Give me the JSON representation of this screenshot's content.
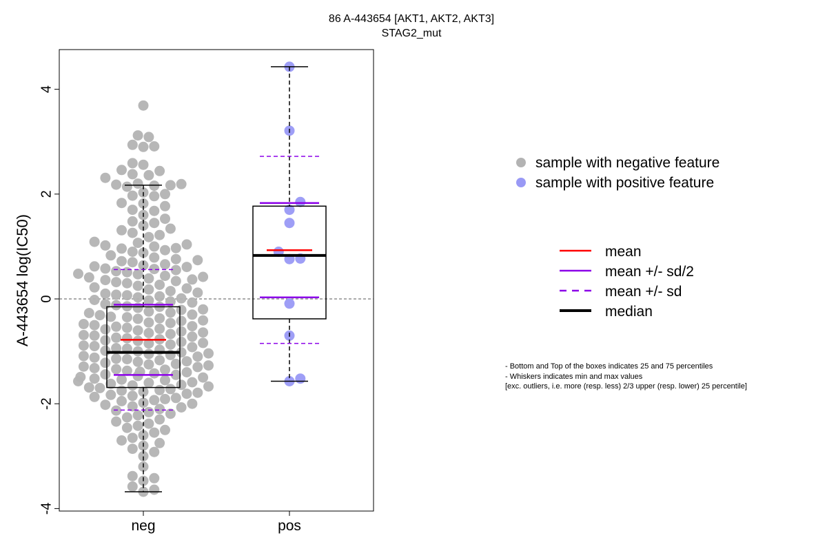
{
  "chart_data": {
    "type": "box-swarm",
    "title": "86 A-443654 [AKT1, AKT2, AKT3]",
    "subtitle": "STAG2_mut",
    "ylabel": "A-443654 log(IC50)",
    "xlabel": "",
    "categories": [
      "neg",
      "pos"
    ],
    "ylim": [
      -4,
      4.6
    ],
    "yticks": [
      -4,
      -2,
      0,
      2,
      4
    ],
    "reference_line": 0,
    "groups": [
      {
        "name": "neg",
        "color": "#b3b3b3",
        "min": -3.68,
        "q1": -1.69,
        "median": -1.02,
        "q3": -0.15,
        "max": 2.17,
        "mean": -0.78,
        "mean_minus_half_sd": -1.45,
        "mean_plus_half_sd": -0.11,
        "mean_minus_sd": -2.12,
        "mean_plus_sd": 0.56,
        "points": [
          3.69,
          3.12,
          3.09,
          2.94,
          2.91,
          2.9,
          2.59,
          2.56,
          2.44,
          2.46,
          2.38,
          2.36,
          2.31,
          2.2,
          2.18,
          2.17,
          2.16,
          2.19,
          2.14,
          2.03,
          2.0,
          1.97,
          1.96,
          1.83,
          1.82,
          1.77,
          1.7,
          1.68,
          1.6,
          1.53,
          1.48,
          1.45,
          1.4,
          1.34,
          1.31,
          1.26,
          1.22,
          1.18,
          1.09,
          1.07,
          1.04,
          1.02,
          1.0,
          0.97,
          0.96,
          0.93,
          0.9,
          0.88,
          0.83,
          0.79,
          0.76,
          0.74,
          0.72,
          0.7,
          0.66,
          0.64,
          0.62,
          0.61,
          0.58,
          0.57,
          0.55,
          0.53,
          0.51,
          0.48,
          0.47,
          0.44,
          0.42,
          0.41,
          0.39,
          0.37,
          0.36,
          0.34,
          0.32,
          0.3,
          0.27,
          0.25,
          0.22,
          0.2,
          0.18,
          0.15,
          0.12,
          0.1,
          0.08,
          0.07,
          0.05,
          0.03,
          0.01,
          -0.02,
          -0.03,
          -0.05,
          -0.07,
          -0.1,
          -0.12,
          -0.14,
          -0.15,
          -0.17,
          -0.2,
          -0.21,
          -0.24,
          -0.26,
          -0.27,
          -0.3,
          -0.31,
          -0.34,
          -0.35,
          -0.37,
          -0.38,
          -0.41,
          -0.42,
          -0.45,
          -0.46,
          -0.48,
          -0.5,
          -0.52,
          -0.53,
          -0.55,
          -0.57,
          -0.58,
          -0.6,
          -0.62,
          -0.64,
          -0.65,
          -0.67,
          -0.69,
          -0.7,
          -0.72,
          -0.74,
          -0.75,
          -0.77,
          -0.79,
          -0.8,
          -0.82,
          -0.84,
          -0.85,
          -0.87,
          -0.89,
          -0.9,
          -0.92,
          -0.94,
          -0.95,
          -0.97,
          -0.99,
          -1.0,
          -1.02,
          -1.04,
          -1.05,
          -1.07,
          -1.09,
          -1.1,
          -1.12,
          -1.14,
          -1.15,
          -1.17,
          -1.19,
          -1.2,
          -1.22,
          -1.24,
          -1.25,
          -1.27,
          -1.29,
          -1.3,
          -1.32,
          -1.34,
          -1.35,
          -1.37,
          -1.39,
          -1.4,
          -1.42,
          -1.44,
          -1.45,
          -1.47,
          -1.49,
          -1.5,
          -1.52,
          -1.54,
          -1.55,
          -1.57,
          -1.59,
          -1.6,
          -1.62,
          -1.64,
          -1.65,
          -1.67,
          -1.69,
          -1.7,
          -1.72,
          -1.74,
          -1.75,
          -1.77,
          -1.79,
          -1.81,
          -1.83,
          -1.85,
          -1.87,
          -1.89,
          -1.91,
          -1.93,
          -1.95,
          -1.98,
          -2.0,
          -2.02,
          -2.05,
          -2.07,
          -2.1,
          -2.13,
          -2.16,
          -2.19,
          -2.22,
          -2.26,
          -2.3,
          -2.34,
          -2.38,
          -2.42,
          -2.46,
          -2.5,
          -2.55,
          -2.6,
          -2.65,
          -2.7,
          -2.75,
          -2.8,
          -2.86,
          -2.92,
          -3.0,
          -3.2,
          -3.38,
          -3.42,
          -3.47,
          -3.58,
          -3.64,
          -3.68
        ],
        "point_count_note": ""
      },
      {
        "name": "pos",
        "color": "#9999f5",
        "min": -1.57,
        "q1": -0.38,
        "median": 0.83,
        "q3": 1.77,
        "max": 4.43,
        "mean": 0.93,
        "mean_minus_half_sd": 0.03,
        "mean_plus_half_sd": 1.83,
        "mean_minus_sd": -0.85,
        "mean_plus_sd": 2.72,
        "points": [
          4.43,
          3.21,
          1.85,
          1.7,
          1.45,
          0.9,
          0.77,
          0.76,
          -0.09,
          -0.7,
          -1.52,
          -1.57
        ]
      }
    ],
    "legend_position": "right",
    "legend_points": [
      {
        "label": "sample with negative feature",
        "color": "#b3b3b3"
      },
      {
        "label": "sample with positive feature",
        "color": "#9999f5"
      }
    ],
    "legend_lines": [
      {
        "label": "mean",
        "color": "#ff0000",
        "style": "solid"
      },
      {
        "label": "mean +/- sd/2",
        "color": "#8b00e8",
        "style": "solid"
      },
      {
        "label": "mean +/- sd",
        "color": "#8b00e8",
        "style": "dashed"
      },
      {
        "label": "median",
        "color": "#000000",
        "style": "solid-thick"
      }
    ],
    "notes": [
      "- Bottom and Top of the boxes indicates 25 and 75 percentiles",
      "- Whiskers indicates min and max values",
      "[exc. outliers, i.e. more (resp. less) 2/3 upper (resp. lower) 25 percentile]"
    ]
  }
}
